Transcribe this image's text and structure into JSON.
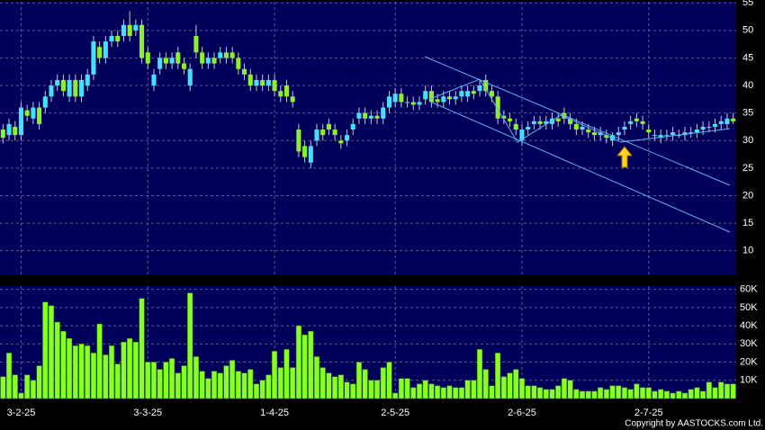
{
  "chart_data": {
    "type": "candlestick",
    "categories": [
      null,
      null,
      null,
      "3-2-25",
      null,
      null,
      null,
      null,
      null,
      null,
      null,
      null,
      null,
      null,
      null,
      null,
      null,
      null,
      null,
      null,
      null,
      null,
      null,
      null,
      "3-3-25",
      null,
      null,
      null,
      null,
      null,
      null,
      null,
      null,
      null,
      null,
      null,
      null,
      null,
      null,
      null,
      null,
      null,
      null,
      null,
      null,
      "1-4-25",
      null,
      null,
      null,
      null,
      null,
      null,
      null,
      null,
      null,
      null,
      null,
      null,
      null,
      null,
      null,
      null,
      null,
      null,
      null,
      "2-5-25",
      null,
      null,
      null,
      null,
      null,
      null,
      null,
      null,
      null,
      null,
      null,
      null,
      null,
      null,
      null,
      null,
      null,
      null,
      null,
      null,
      "2-6-25",
      null,
      null,
      null,
      null,
      null,
      null,
      null,
      null,
      null,
      null,
      null,
      null,
      null,
      null,
      null,
      null,
      null,
      null,
      null,
      null,
      "2-7-25",
      null,
      null,
      null,
      null,
      null,
      null,
      null,
      null,
      null,
      null,
      null,
      null,
      null,
      null
    ],
    "open": [
      32,
      31,
      32.5,
      31,
      35.5,
      34,
      36,
      36,
      38,
      40,
      41,
      38,
      41,
      38,
      40,
      42,
      47,
      45,
      48,
      49,
      49,
      51,
      50,
      51,
      46,
      40,
      43,
      45,
      44,
      46,
      44,
      40,
      49,
      46,
      44,
      45,
      45,
      46,
      46,
      45,
      43,
      42,
      40,
      41,
      40,
      41,
      39,
      40,
      38,
      32,
      29,
      26,
      30,
      32,
      33,
      32,
      30,
      30,
      32,
      34,
      35,
      34,
      34.5,
      34,
      36,
      37,
      38.5,
      37,
      37,
      36.5,
      37.5,
      39,
      37.5,
      37,
      38,
      37.5,
      38,
      38,
      39,
      39,
      41,
      39,
      38,
      34.5,
      34,
      33,
      30,
      32,
      33,
      33.5,
      33,
      33,
      34,
      35,
      34,
      33,
      32,
      32,
      31.5,
      31,
      31,
      30,
      31,
      32,
      33,
      34,
      33.5,
      32,
      31,
      30.5,
      31,
      31,
      31,
      31,
      31.5,
      31.5,
      32,
      32.5,
      32.5,
      33,
      33,
      34
    ],
    "high": [
      33,
      34,
      33.5,
      37,
      36.5,
      37,
      37,
      39,
      41,
      42,
      42,
      42,
      42,
      42,
      43,
      49,
      48,
      49,
      50,
      50,
      52,
      53.5,
      52,
      52,
      47,
      43,
      46,
      46,
      46,
      47,
      45,
      44,
      51,
      47,
      46,
      46,
      47,
      47,
      47,
      46,
      44,
      43,
      42,
      42,
      42,
      42,
      40,
      41,
      39,
      33,
      30,
      30,
      33,
      33,
      34,
      33,
      31,
      32,
      34,
      36,
      36,
      35.5,
      35.5,
      37,
      39,
      39.5,
      39.5,
      38,
      38,
      38,
      40,
      40,
      38.5,
      39,
      39,
      39,
      40,
      40,
      40,
      41,
      42,
      40,
      39,
      35.5,
      35,
      34,
      33,
      33.5,
      34.5,
      34.5,
      34.5,
      35,
      35,
      36,
      35,
      34,
      33.5,
      33,
      32.5,
      32.5,
      32,
      31.5,
      32.5,
      33.5,
      34.5,
      35,
      34.5,
      33,
      32,
      32,
      32,
      32.5,
      32,
      32.5,
      32.5,
      33,
      33.5,
      33.5,
      34,
      34.5,
      35,
      35
    ],
    "low": [
      29.5,
      30,
      30,
      30,
      33.5,
      33,
      32,
      35,
      37,
      39,
      38,
      37,
      37,
      37,
      39,
      41,
      44,
      44,
      47,
      47,
      48,
      48,
      49,
      44,
      43,
      39,
      42,
      43,
      43,
      43,
      42,
      39,
      45,
      43,
      43,
      43,
      44,
      44,
      44,
      42,
      41,
      39,
      39,
      39,
      39,
      38,
      37,
      37,
      36,
      27,
      26,
      25,
      29,
      30,
      31,
      30,
      28.5,
      29,
      31,
      33,
      33,
      33,
      33,
      33,
      35,
      36,
      36,
      36,
      35.5,
      35.5,
      36.5,
      36,
      36,
      36,
      36.5,
      36.5,
      37,
      37,
      37.5,
      38,
      38,
      37,
      33,
      33,
      32.5,
      31,
      29,
      31,
      32,
      32,
      32,
      32,
      32.5,
      33,
      32,
      31,
      31,
      30.5,
      30,
      30,
      29.5,
      29,
      30,
      31,
      32,
      32.5,
      32,
      30.5,
      30,
      29.5,
      30,
      30,
      30.5,
      30,
      30.5,
      30.5,
      31,
      31.5,
      31.5,
      32,
      32,
      33
    ],
    "close": [
      30.5,
      33,
      31,
      36,
      34.5,
      36,
      33,
      38,
      40,
      41,
      39,
      41,
      38,
      41,
      42,
      48,
      45,
      48,
      49,
      48,
      51,
      49,
      51,
      45,
      44,
      42,
      45,
      44,
      45,
      44,
      43,
      43,
      46,
      44,
      45,
      44,
      46,
      45,
      45,
      43,
      42,
      40,
      41,
      40,
      41,
      39,
      38,
      38,
      37,
      28,
      27,
      29,
      32,
      31,
      32,
      31,
      29.5,
      31,
      33,
      35,
      34,
      34.5,
      34,
      36,
      38,
      38.5,
      37,
      37,
      36.5,
      37,
      39,
      37,
      37,
      38,
      37.5,
      38,
      39,
      39,
      38.5,
      40,
      39,
      38,
      34,
      34,
      33.5,
      32,
      32,
      32.5,
      33.5,
      33,
      33.5,
      34,
      33.5,
      34,
      33,
      32,
      32.5,
      31.5,
      31,
      31.5,
      30.5,
      31,
      31.5,
      32.5,
      33.5,
      33.5,
      33,
      31.5,
      31,
      31,
      31,
      31.5,
      31,
      31.5,
      31.5,
      32,
      32.5,
      32.5,
      33,
      33.5,
      34,
      33.5
    ],
    "up_color": "#44e0ff",
    "down_color": "#8cf02a",
    "ylim": [
      5.7,
      55.2
    ],
    "yticks": [
      10,
      15,
      20,
      25,
      30,
      35,
      40,
      45,
      50,
      55
    ],
    "grid": true,
    "volume": {
      "color": "#88ff22",
      "values": [
        12000,
        25000,
        13000,
        3000,
        13000,
        10000,
        18000,
        53000,
        51000,
        42000,
        37000,
        33000,
        29000,
        30000,
        29000,
        25000,
        41000,
        24000,
        29000,
        19000,
        31000,
        33000,
        31000,
        55000,
        20000,
        20000,
        16000,
        20000,
        22000,
        14000,
        18000,
        58000,
        23000,
        15000,
        11000,
        15000,
        14000,
        18000,
        21000,
        15000,
        14000,
        16000,
        8000,
        10000,
        13000,
        26000,
        17000,
        27000,
        17000,
        40000,
        35000,
        37000,
        23000,
        17000,
        14000,
        12000,
        13000,
        9000,
        8000,
        20000,
        16000,
        10000,
        10000,
        17000,
        20000,
        3000,
        11000,
        11000,
        6000,
        8000,
        10000,
        8000,
        7000,
        6000,
        7000,
        6000,
        6000,
        10000,
        10000,
        27000,
        16000,
        7000,
        25000,
        12000,
        14000,
        16000,
        11000,
        7000,
        7000,
        6000,
        5000,
        5000,
        7000,
        11000,
        10000,
        5000,
        4000,
        4000,
        4000,
        6000,
        5000,
        7000,
        7000,
        6000,
        5000,
        8000,
        6000,
        6000,
        4000,
        5000,
        4000,
        3000,
        4000,
        3000,
        5000,
        6000,
        4000,
        9000,
        6000,
        9000,
        8000,
        8000
      ],
      "ylim": [
        0,
        61800
      ],
      "yticks": [
        {
          "value": 10000,
          "label": "10K"
        },
        {
          "value": 20000,
          "label": "20K"
        },
        {
          "value": 30000,
          "label": "30K"
        },
        {
          "value": 40000,
          "label": "40K"
        },
        {
          "value": 50000,
          "label": "50K"
        },
        {
          "value": 60000,
          "label": "60K"
        }
      ]
    },
    "copyright": "Copyright by AASTOCKS.com Ltd."
  }
}
